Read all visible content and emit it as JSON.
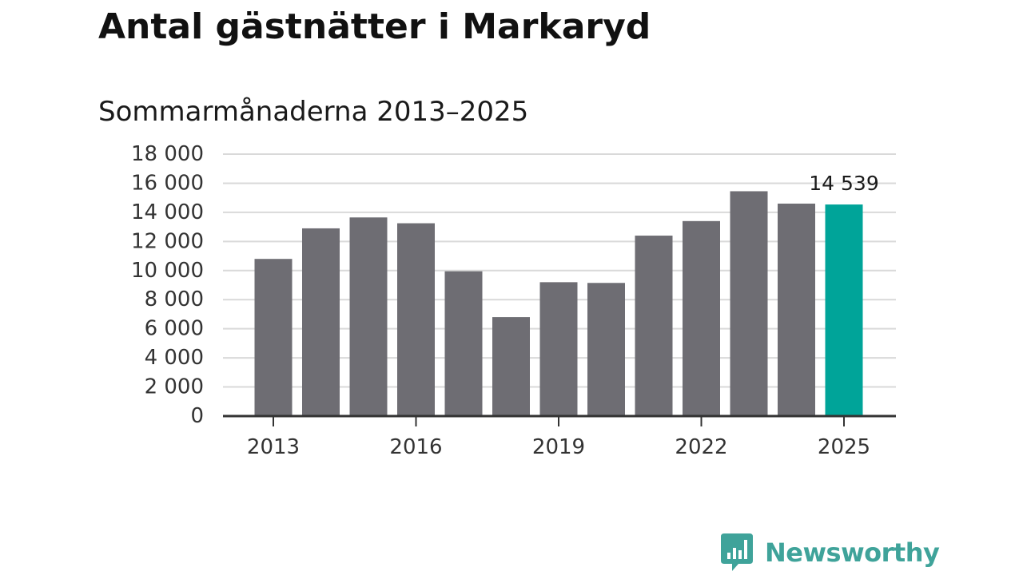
{
  "title": "Antal gästnätter i Markaryd",
  "subtitle": "Sommarmånaderna 2013–2025",
  "chart_data": {
    "type": "bar",
    "categories": [
      "2013",
      "2014",
      "2015",
      "2016",
      "2017",
      "2018",
      "2019",
      "2020",
      "2021",
      "2022",
      "2023",
      "2024",
      "2025"
    ],
    "values": [
      10800,
      12900,
      13650,
      13250,
      9950,
      6800,
      9200,
      9150,
      12400,
      13400,
      15450,
      14600,
      14539
    ],
    "x_tick_labels": [
      "2013",
      "2016",
      "2019",
      "2022",
      "2025"
    ],
    "y_tick_labels": [
      "0",
      "2 000",
      "4 000",
      "6 000",
      "8 000",
      "10 000",
      "12 000",
      "14 000",
      "16 000",
      "18 000"
    ],
    "ylim": [
      0,
      18000
    ],
    "y_ticks": [
      0,
      2000,
      4000,
      6000,
      8000,
      10000,
      12000,
      14000,
      16000,
      18000
    ],
    "grid": true,
    "legend": "none",
    "annotations": [
      {
        "category": "2025",
        "text": "14 539"
      }
    ],
    "highlight_category": "2025",
    "colors": {
      "bar": "#6e6d73",
      "highlight": "#00a499",
      "grid": "#d9d9d9",
      "axis": "#333333",
      "text": "#333333"
    }
  },
  "brand": {
    "name": "Newsworthy",
    "logo_icon": "newsworthy-bar-chart-speech-bubble-icon",
    "color": "#3fa39a"
  }
}
